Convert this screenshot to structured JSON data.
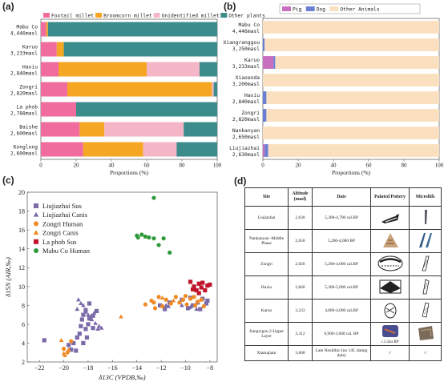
{
  "panels": {
    "a": {
      "letter": "(a)"
    },
    "b": {
      "letter": "(b)"
    },
    "c": {
      "letter": "(c)"
    },
    "d": {
      "letter": "(d)"
    }
  },
  "chart_data": [
    {
      "id": "a",
      "type": "bar",
      "orientation": "horizontal",
      "stacked": true,
      "categories": [
        "Mabu Co\n4,446masl",
        "Karuo\n3,233masl",
        "Haxiu\n2,840masl",
        "Zongri\n2,820masl",
        "La phob\n2,788masl",
        "Baishe\n2,600masl",
        "Konglong\n2,600masl"
      ],
      "series": [
        {
          "name": "Foxtail millet",
          "color": "#f06b9e",
          "values": [
            3,
            9,
            10,
            15,
            20,
            22,
            24
          ]
        },
        {
          "name": "Broomcorn millet",
          "color": "#f5a623",
          "values": [
            1,
            4,
            50,
            82,
            0,
            14,
            34
          ]
        },
        {
          "name": "Unidentified millet",
          "color": "#f4b6c6",
          "values": [
            0,
            0,
            30,
            1,
            0,
            45,
            19
          ]
        },
        {
          "name": "Other plants",
          "color": "#3c8c8c",
          "values": [
            96,
            87,
            10,
            2,
            80,
            19,
            23
          ]
        }
      ],
      "xlabel": "Proportions (%)",
      "xlim": [
        0,
        100
      ],
      "xticks": [
        0,
        20,
        40,
        60,
        80,
        100
      ],
      "legend": "top"
    },
    {
      "id": "b",
      "type": "bar",
      "orientation": "horizontal",
      "stacked": true,
      "categories": [
        "Mabu Co\n4,446masl",
        "Xiangranggou\n3,250masl",
        "Karuo\n3,233masl",
        "Xiaoenda\n3,200masl",
        "Haxiu\n2,840masl",
        "Zongri\n2,820masl",
        "Nankanyan\n2,650masl",
        "Liujiazhai\n2,630masl"
      ],
      "series": [
        {
          "name": "Pig",
          "color": "#c86fc0",
          "values": [
            0,
            0,
            6,
            0,
            0,
            0,
            0,
            1
          ]
        },
        {
          "name": "Dog",
          "color": "#6a7fd4",
          "values": [
            0,
            1,
            1,
            0,
            2,
            2,
            0,
            2
          ]
        },
        {
          "name": "Other Animals",
          "color": "#fbe0c0",
          "values": [
            100,
            99,
            93,
            100,
            98,
            98,
            100,
            97
          ]
        }
      ],
      "xlabel": "Proportions (%)",
      "xlim": [
        0,
        100
      ],
      "xticks": [
        0,
        20,
        40,
        60,
        80,
        100
      ],
      "legend": "top-left"
    },
    {
      "id": "c",
      "type": "scatter",
      "xlabel": "δ13C (VPDB,‰)",
      "ylabel": "δ15N (AIR,‰)",
      "xlim": [
        -23,
        -7.4
      ],
      "ylim": [
        2,
        20
      ],
      "xticks": [
        -22,
        -20,
        -18,
        -16,
        -14,
        -12,
        -10,
        -8
      ],
      "yticks": [
        2,
        4,
        6,
        8,
        10,
        12,
        14,
        16,
        18,
        20
      ],
      "legend": "top-left",
      "series": [
        {
          "name": "Liujiazhai Sus",
          "color": "#7b6aa8",
          "marker": "square",
          "points": [
            [
              -21.6,
              4.3
            ],
            [
              -19.6,
              3.8
            ],
            [
              -19.4,
              3.3
            ],
            [
              -19.0,
              3.2
            ],
            [
              -18.9,
              4.6
            ],
            [
              -18.7,
              5.0
            ],
            [
              -18.6,
              5.8
            ],
            [
              -18.5,
              6.5
            ],
            [
              -18.4,
              7.0
            ],
            [
              -18.2,
              7.5
            ],
            [
              -18.0,
              6.0
            ],
            [
              -18.2,
              5.5
            ],
            [
              -17.9,
              6.6
            ],
            [
              -17.6,
              6.9
            ],
            [
              -17.6,
              5.6
            ],
            [
              -18.1,
              4.6
            ],
            [
              -18.4,
              4.0
            ],
            [
              -19.2,
              4.0
            ],
            [
              -17.3,
              7.4
            ],
            [
              -17.9,
              8.2
            ],
            [
              -12.1,
              8.0
            ],
            [
              -11.7,
              7.6
            ],
            [
              -11.3,
              8.3
            ],
            [
              -10.3,
              8.6
            ],
            [
              -9.6,
              8.8
            ],
            [
              -9.4,
              8.0
            ],
            [
              -9.0,
              8.3
            ],
            [
              -8.8,
              7.6
            ],
            [
              -8.6,
              8.7
            ],
            [
              -8.3,
              8.2
            ],
            [
              -8.2,
              8.5
            ],
            [
              -9.8,
              7.7
            ]
          ]
        },
        {
          "name": "Liujiazhai Canis",
          "color": "#7b6aa8",
          "marker": "triangle",
          "points": [
            [
              -18.8,
              8.6
            ],
            [
              -18.6,
              8.2
            ],
            [
              -18.4,
              8.0
            ],
            [
              -18.2,
              7.3
            ],
            [
              -18.0,
              7.0
            ],
            [
              -17.8,
              6.8
            ],
            [
              -17.7,
              6.5
            ],
            [
              -17.5,
              7.2
            ],
            [
              -17.4,
              6.1
            ],
            [
              -17.1,
              5.8
            ],
            [
              -16.9,
              5.6
            ],
            [
              -18.9,
              7.6
            ],
            [
              -17.2,
              5.5
            ],
            [
              -11.6,
              8.0
            ],
            [
              -11.4,
              7.9
            ],
            [
              -10.3,
              8.0
            ],
            [
              -9.6,
              7.8
            ],
            [
              -9.1,
              7.6
            ]
          ]
        },
        {
          "name": "Zongri Human",
          "color": "#f08a24",
          "marker": "circle",
          "points": [
            [
              -20.0,
              3.4
            ],
            [
              -19.7,
              3.0
            ],
            [
              -19.4,
              4.2
            ],
            [
              -13.3,
              8.1
            ],
            [
              -12.8,
              8.5
            ],
            [
              -12.5,
              7.7
            ],
            [
              -12.2,
              8.9
            ],
            [
              -11.9,
              7.9
            ],
            [
              -11.6,
              8.6
            ],
            [
              -11.2,
              8.2
            ],
            [
              -10.8,
              8.9
            ],
            [
              -10.5,
              8.3
            ],
            [
              -10.2,
              8.6
            ],
            [
              -9.9,
              8.1
            ],
            [
              -9.6,
              8.7
            ],
            [
              -9.3,
              8.9
            ],
            [
              -9.0,
              8.4
            ],
            [
              -8.7,
              8.6
            ],
            [
              -8.5,
              7.9
            ],
            [
              -9.2,
              8.0
            ],
            [
              -10.0,
              9.0
            ],
            [
              -12.6,
              8.3
            ]
          ]
        },
        {
          "name": "Zongri Canis",
          "color": "#f08a24",
          "marker": "triangle",
          "points": [
            [
              -20.2,
              4.3
            ],
            [
              -20.0,
              2.9
            ],
            [
              -19.9,
              2.7
            ],
            [
              -19.6,
              3.3
            ],
            [
              -15.3,
              6.8
            ],
            [
              -11.9,
              8.8
            ],
            [
              -11.0,
              8.5
            ]
          ]
        },
        {
          "name": "La phob Sus",
          "color": "#c0142c",
          "marker": "square",
          "points": [
            [
              -9.6,
              10.5
            ],
            [
              -9.3,
              10.0
            ],
            [
              -9.1,
              9.6
            ],
            [
              -8.9,
              10.3
            ],
            [
              -8.7,
              9.9
            ],
            [
              -8.6,
              10.4
            ],
            [
              -8.4,
              9.6
            ],
            [
              -8.2,
              10.1
            ],
            [
              -8.0,
              10.2
            ],
            [
              -8.9,
              9.3
            ],
            [
              -9.4,
              9.7
            ]
          ]
        },
        {
          "name": "Mabu Co Human",
          "color": "#2e9a3a",
          "marker": "circle",
          "points": [
            [
              -12.6,
              19.4
            ],
            [
              -14.0,
              15.4
            ],
            [
              -13.6,
              15.5
            ],
            [
              -13.3,
              15.3
            ],
            [
              -13.0,
              15.2
            ],
            [
              -12.6,
              15.1
            ],
            [
              -13.9,
              15.2
            ],
            [
              -12.2,
              14.4
            ],
            [
              -11.8,
              15.1
            ],
            [
              -11.3,
              13.6
            ]
          ]
        }
      ]
    },
    {
      "id": "d",
      "type": "table",
      "columns": [
        "Site",
        "Altitude (masl)",
        "Date",
        "Painted Pottery",
        "Microlith"
      ],
      "rows": [
        {
          "site": "Liujiazhai",
          "altitude": "2,630",
          "date": "5,300-4,700 cal.BP"
        },
        {
          "site": "Nankanyan -Middle Phase",
          "altitude": "2,650",
          "date": "5,200-4,000 BP"
        },
        {
          "site": "Zongri",
          "altitude": "2,820",
          "date": "5,200-4,000 cal.BP"
        },
        {
          "site": "Haxiu",
          "altitude": "2,840",
          "date": "5,300-5,000 cal.BP"
        },
        {
          "site": "Karuo",
          "altitude": "3,233",
          "date": "4,800-4,000 cal.BP"
        },
        {
          "site": "Jiangxigou 2-Upper Layer",
          "altitude": "3,312",
          "date": "6,900-3,600 cal. BP",
          "pottery_note": "c.5.5ka BP"
        },
        {
          "site": "Xiamajiam",
          "altitude": "3,600",
          "date": "Late Neolithic (no 14C dating data)",
          "pottery_mark": "√",
          "microlith_mark": "√"
        }
      ]
    }
  ]
}
